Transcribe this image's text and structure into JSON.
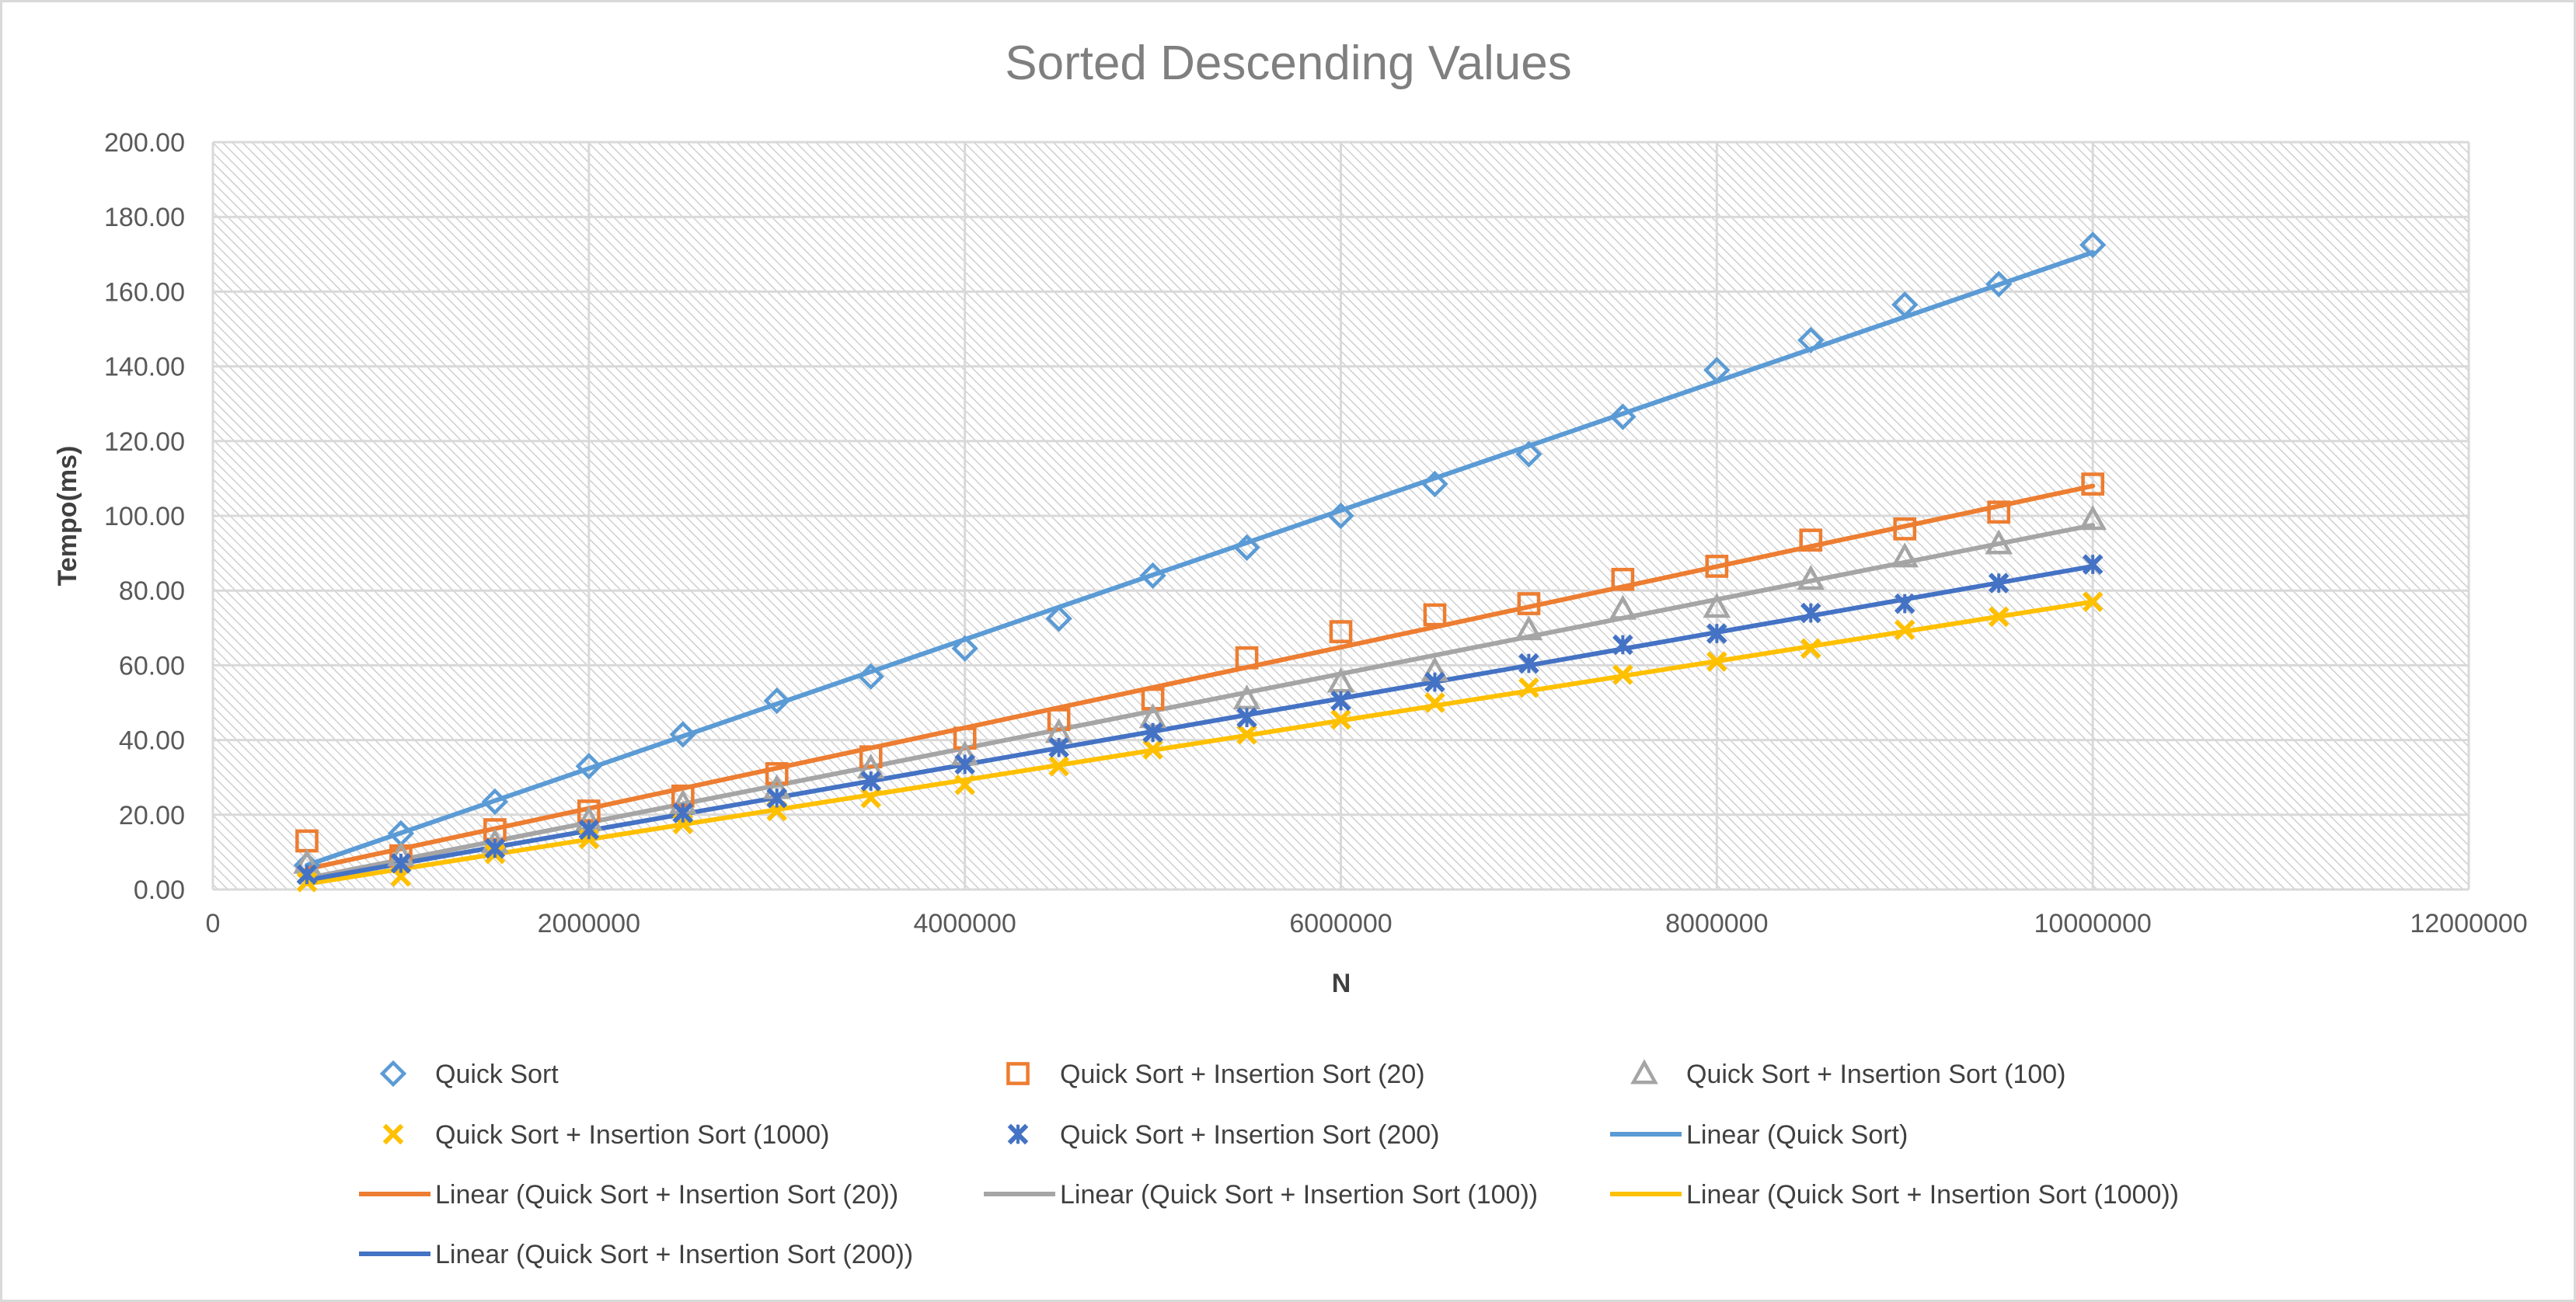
{
  "chart_data": {
    "type": "scatter",
    "title": "Sorted Descending Values",
    "xlabel": "N",
    "ylabel": "Tempo(ms)",
    "xlim": [
      0,
      12000000
    ],
    "ylim": [
      0,
      200
    ],
    "x_ticks": [
      0,
      2000000,
      4000000,
      6000000,
      8000000,
      10000000,
      12000000
    ],
    "x_tick_labels": [
      "0",
      "2000000",
      "4000000",
      "6000000",
      "8000000",
      "10000000",
      "12000000"
    ],
    "y_ticks": [
      0,
      20,
      40,
      60,
      80,
      100,
      120,
      140,
      160,
      180,
      200
    ],
    "y_tick_labels": [
      "0.00",
      "20.00",
      "40.00",
      "60.00",
      "80.00",
      "100.00",
      "120.00",
      "140.00",
      "160.00",
      "180.00",
      "200.00"
    ],
    "grid": true,
    "legend_position": "bottom",
    "x": [
      500000,
      1000000,
      1500000,
      2000000,
      2500000,
      3000000,
      3500000,
      4000000,
      4500000,
      5000000,
      5500000,
      6000000,
      6500000,
      7000000,
      7500000,
      8000000,
      8500000,
      9000000,
      9500000,
      10000000
    ],
    "series": [
      {
        "name": "Quick Sort",
        "color": "#5b9bd5",
        "marker": "diamond",
        "values": [
          6.5,
          15,
          23.5,
          33,
          41.5,
          50.5,
          57,
          64.5,
          72.5,
          84,
          91.5,
          100,
          108.5,
          116.5,
          126.5,
          139,
          147,
          156.5,
          162,
          172.5
        ]
      },
      {
        "name": "Quick Sort + Insertion Sort (20)",
        "color": "#ed7d31",
        "marker": "square",
        "values": [
          13,
          9,
          16,
          21,
          25,
          31,
          35.5,
          40.5,
          45.5,
          51,
          62,
          69,
          73.5,
          76.5,
          83,
          86.5,
          93.5,
          96.5,
          101,
          108.5
        ]
      },
      {
        "name": "Quick Sort + Insertion Sort (100)",
        "color": "#a5a5a5",
        "marker": "triangle",
        "values": [
          7,
          9,
          12.5,
          18.5,
          23,
          27,
          32.5,
          36,
          42,
          46,
          51,
          55.5,
          58.5,
          69.5,
          75,
          75.5,
          83,
          89,
          92.5,
          99
        ]
      },
      {
        "name": "Quick Sort + Insertion Sort (1000)",
        "color": "#ffc000",
        "marker": "x",
        "values": [
          2,
          3.5,
          9.5,
          13.5,
          17.5,
          21,
          24.5,
          28,
          33,
          37.5,
          41.5,
          45.5,
          50,
          54,
          57.5,
          61,
          64.5,
          69.5,
          73,
          77
        ]
      },
      {
        "name": "Quick Sort + Insertion Sort (200)",
        "color": "#4472c4",
        "marker": "star",
        "values": [
          4,
          7,
          11,
          16,
          20.5,
          24.5,
          29,
          33.5,
          38,
          42,
          46,
          50.5,
          55.5,
          60.5,
          65.5,
          68.5,
          74,
          76.5,
          82,
          87
        ]
      }
    ],
    "trendlines": [
      {
        "name": "Linear (Quick Sort)",
        "color": "#5b9bd5",
        "from": [
          500000,
          6.5
        ],
        "to": [
          10000000,
          170.5
        ]
      },
      {
        "name": "Linear (Quick Sort + Insertion Sort (20))",
        "color": "#ed7d31",
        "from": [
          500000,
          5.5
        ],
        "to": [
          10000000,
          108
        ]
      },
      {
        "name": "Linear (Quick Sort + Insertion Sort (100))",
        "color": "#a5a5a5",
        "from": [
          500000,
          3
        ],
        "to": [
          10000000,
          97.5
        ]
      },
      {
        "name": "Linear (Quick Sort + Insertion Sort (1000))",
        "color": "#ffc000",
        "from": [
          500000,
          1.5
        ],
        "to": [
          10000000,
          77
        ]
      },
      {
        "name": "Linear (Quick Sort + Insertion Sort (200))",
        "color": "#4472c4",
        "from": [
          500000,
          2.5
        ],
        "to": [
          10000000,
          86.5
        ]
      }
    ],
    "legend_order": [
      {
        "kind": "series",
        "index": 0
      },
      {
        "kind": "series",
        "index": 1
      },
      {
        "kind": "series",
        "index": 2
      },
      {
        "kind": "series",
        "index": 3
      },
      {
        "kind": "series",
        "index": 4
      },
      {
        "kind": "trend",
        "index": 0
      },
      {
        "kind": "trend",
        "index": 1
      },
      {
        "kind": "trend",
        "index": 2
      },
      {
        "kind": "trend",
        "index": 3
      },
      {
        "kind": "trend",
        "index": 4
      }
    ]
  }
}
